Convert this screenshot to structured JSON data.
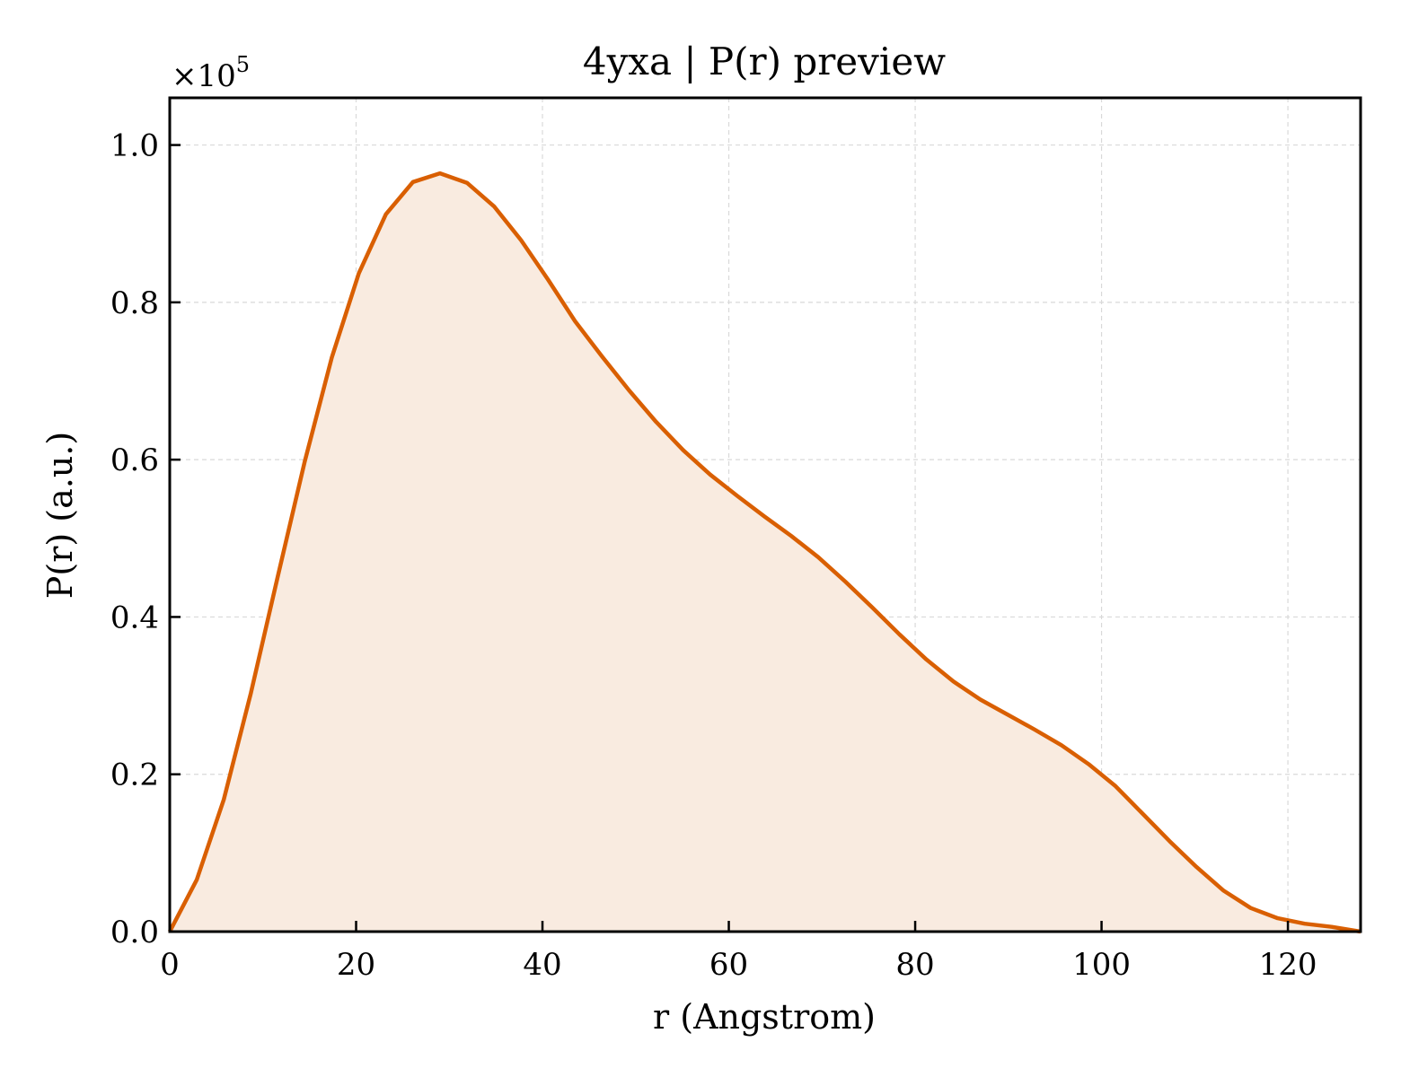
{
  "chart_data": {
    "type": "area",
    "title": "4yxa | P(r) preview",
    "xlabel": "r (Angstrom)",
    "ylabel": "P(r) (a.u.)",
    "y_scale_label": "×10",
    "y_scale_exponent": "5",
    "y_multiplier": 100000,
    "xlim": [
      0,
      127.8
    ],
    "ylim": [
      0,
      1.06
    ],
    "xticks": [
      0,
      20,
      40,
      60,
      80,
      100,
      120
    ],
    "xtick_labels": [
      "0",
      "20",
      "40",
      "60",
      "80",
      "100",
      "120"
    ],
    "yticks": [
      0.0,
      0.2,
      0.4,
      0.6,
      0.8,
      1.0
    ],
    "ytick_labels": [
      "0.0",
      "0.2",
      "0.4",
      "0.6",
      "0.8",
      "1.0"
    ],
    "grid": true,
    "line_color": "#d95f02",
    "fill_color": "#f9ebe0",
    "series": [
      {
        "x": [
          0,
          2.9,
          5.8,
          8.7,
          11.6,
          14.5,
          17.4,
          20.3,
          23.2,
          26.1,
          29.0,
          31.9,
          34.8,
          37.7,
          40.6,
          43.5,
          46.4,
          49.3,
          52.2,
          55.1,
          58.0,
          60.9,
          63.8,
          66.7,
          69.6,
          72.5,
          75.4,
          78.3,
          81.2,
          84.1,
          87.0,
          89.9,
          92.8,
          95.7,
          98.6,
          101.5,
          104.4,
          107.3,
          110.2,
          113.1,
          116.0,
          118.9,
          121.8,
          124.7,
          127.8
        ],
        "y": [
          0.0,
          0.066,
          0.168,
          0.303,
          0.452,
          0.598,
          0.73,
          0.837,
          0.912,
          0.953,
          0.964,
          0.952,
          0.922,
          0.879,
          0.829,
          0.776,
          0.731,
          0.688,
          0.648,
          0.612,
          0.581,
          0.554,
          0.528,
          0.503,
          0.476,
          0.445,
          0.412,
          0.378,
          0.346,
          0.318,
          0.295,
          0.276,
          0.257,
          0.237,
          0.213,
          0.185,
          0.15,
          0.115,
          0.082,
          0.052,
          0.03,
          0.017,
          0.01,
          0.006,
          0.0
        ]
      }
    ]
  }
}
